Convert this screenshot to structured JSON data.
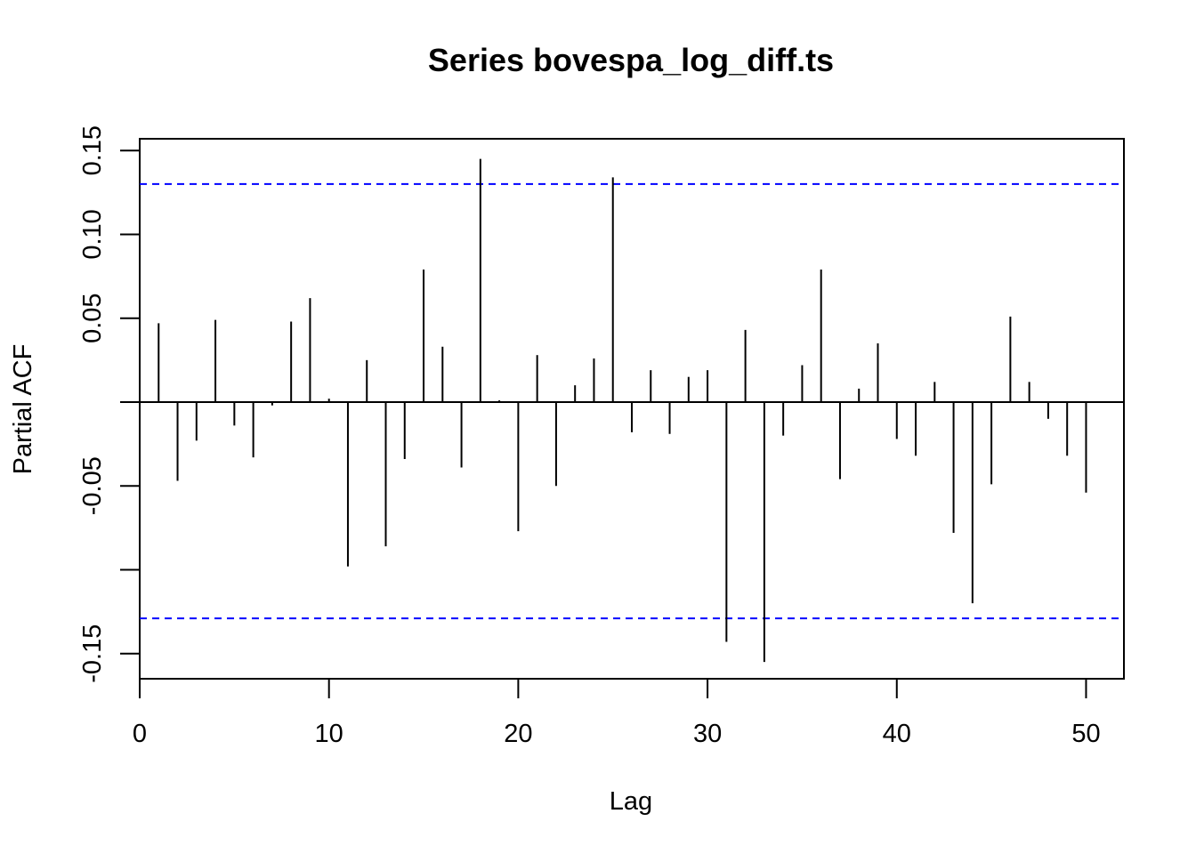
{
  "chart_data": {
    "type": "bar",
    "title": "Series  bovespa_log_diff.ts",
    "xlabel": "Lag",
    "ylabel": "Partial ACF",
    "xlim": [
      0,
      52
    ],
    "ylim": [
      -0.165,
      0.157
    ],
    "x_ticks": [
      0,
      10,
      20,
      30,
      40,
      50
    ],
    "x_tick_labels": [
      "0",
      "10",
      "20",
      "30",
      "40",
      "50"
    ],
    "y_ticks": [
      -0.15,
      -0.1,
      -0.05,
      0,
      0.05,
      0.1,
      0.15
    ],
    "y_tick_labels": [
      "-0.15",
      "",
      "-0.05",
      "",
      "0.05",
      "0.10",
      "0.15"
    ],
    "confidence_bounds": [
      0.13,
      -0.129
    ],
    "confidence_color": "#0000ff",
    "line_color": "#000000",
    "grid": false,
    "legend": "none",
    "lags": [
      1,
      2,
      3,
      4,
      5,
      6,
      7,
      8,
      9,
      10,
      11,
      12,
      13,
      14,
      15,
      16,
      17,
      18,
      19,
      20,
      21,
      22,
      23,
      24,
      25,
      26,
      27,
      28,
      29,
      30,
      31,
      32,
      33,
      34,
      35,
      36,
      37,
      38,
      39,
      40,
      41,
      42,
      43,
      44,
      45,
      46,
      47,
      48,
      49,
      50
    ],
    "values": [
      0.047,
      -0.047,
      -0.023,
      0.049,
      -0.014,
      -0.033,
      -0.002,
      0.048,
      0.062,
      0.002,
      -0.098,
      0.025,
      -0.086,
      -0.034,
      0.079,
      0.033,
      -0.039,
      0.145,
      0.001,
      -0.077,
      0.028,
      -0.05,
      0.01,
      0.026,
      0.134,
      -0.018,
      0.019,
      -0.019,
      0.015,
      0.019,
      -0.143,
      0.043,
      -0.155,
      -0.02,
      0.022,
      0.079,
      -0.046,
      0.008,
      0.035,
      -0.022,
      -0.032,
      0.012,
      -0.078,
      -0.12,
      -0.049,
      0.051,
      0.012,
      -0.01,
      -0.032,
      -0.054
    ]
  }
}
